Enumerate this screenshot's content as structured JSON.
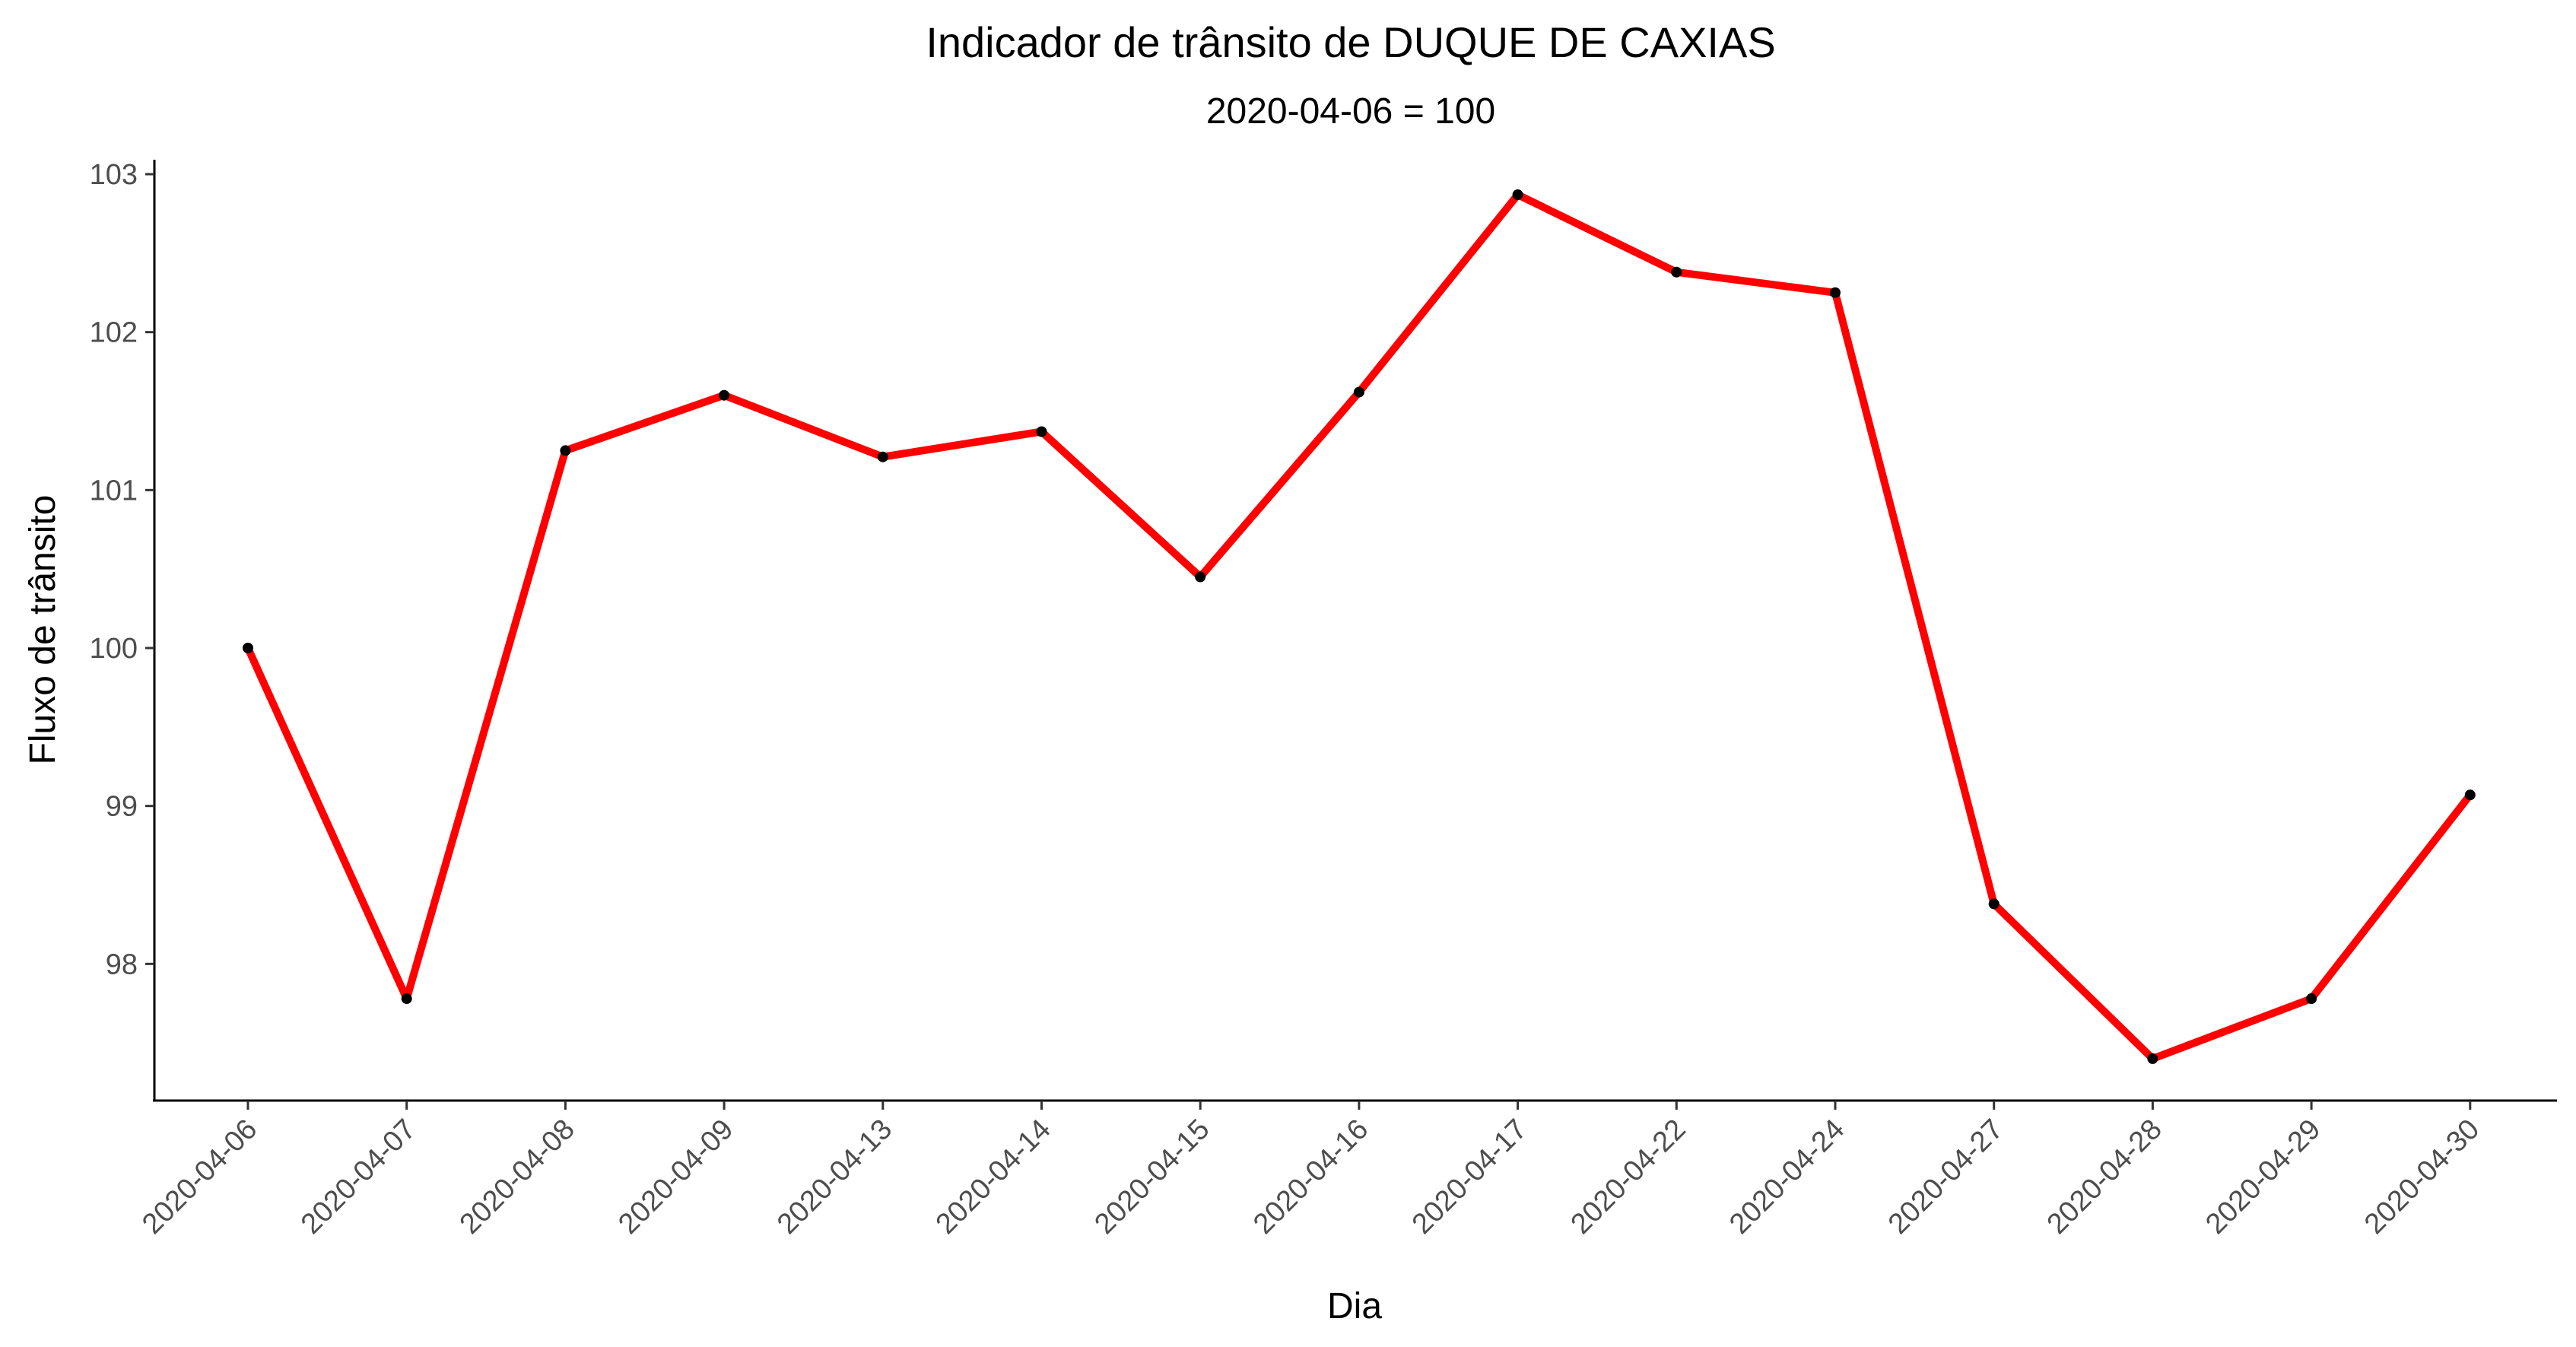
{
  "chart_data": {
    "type": "line",
    "title": "Indicador de trânsito de DUQUE DE CAXIAS",
    "subtitle": "2020-04-06 = 100",
    "xlabel": "Dia",
    "ylabel": "Fluxo de trânsito",
    "categories": [
      "2020-04-06",
      "2020-04-07",
      "2020-04-08",
      "2020-04-09",
      "2020-04-13",
      "2020-04-14",
      "2020-04-15",
      "2020-04-16",
      "2020-04-17",
      "2020-04-22",
      "2020-04-24",
      "2020-04-27",
      "2020-04-28",
      "2020-04-29",
      "2020-04-30"
    ],
    "series": [
      {
        "values": [
          100.0,
          97.78,
          101.25,
          101.6,
          101.21,
          101.37,
          100.45,
          101.62,
          102.87,
          102.38,
          102.25,
          98.38,
          97.4,
          97.78,
          99.07
        ],
        "color": "#ff0000",
        "point_color": "#000000"
      }
    ],
    "yticks": [
      98,
      99,
      100,
      101,
      102,
      103
    ],
    "ylim": [
      97.3,
      103.15
    ],
    "grid": false,
    "legend": "none"
  }
}
